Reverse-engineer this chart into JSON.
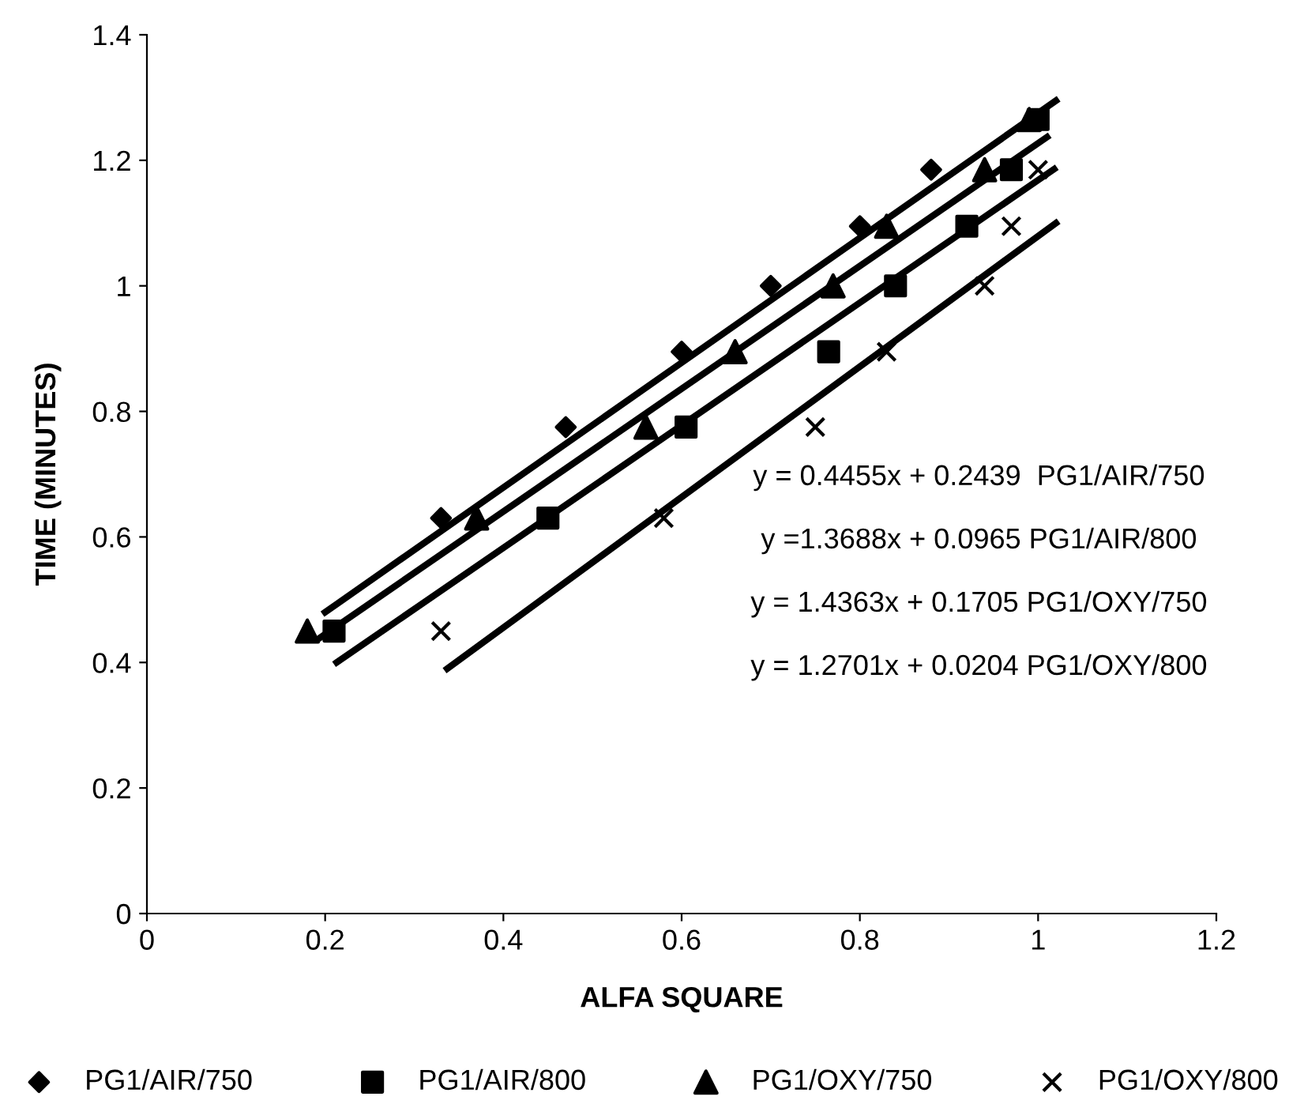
{
  "chart_data": {
    "type": "scatter",
    "xlabel": "ALFA SQUARE",
    "ylabel": "TIME (MINUTES)",
    "xlim": [
      0,
      1.2
    ],
    "xticks": [
      0,
      0.2,
      0.4,
      0.6,
      0.8,
      1,
      1.2
    ],
    "ylim": [
      0,
      1.4
    ],
    "yticks": [
      0,
      0.2,
      0.4,
      0.6,
      0.8,
      1,
      1.2,
      1.4
    ],
    "grid": false,
    "legend": "bottom",
    "annotations": [
      "y = 0.4455x + 0.2439  PG1/AIR/750",
      "y =1.3688x + 0.0965 PG1/AIR/800",
      "y = 1.4363x + 0.1705 PG1/OXY/750",
      "y = 1.2701x + 0.0204 PG1/OXY/800"
    ],
    "series": [
      {
        "name": "PG1/AIR/750",
        "color": "#000000",
        "marker": "diamond",
        "x": [
          0.33,
          0.47,
          0.6,
          0.7,
          0.8,
          0.88
        ],
        "values": [
          0.63,
          0.775,
          0.895,
          1.0,
          1.095,
          1.185
        ]
      },
      {
        "name": "PG1/AIR/800",
        "color": "#000000",
        "marker": "square",
        "x": [
          0.21,
          0.45,
          0.605,
          0.765,
          0.84,
          0.92,
          0.97,
          1.0
        ],
        "values": [
          0.45,
          0.63,
          0.775,
          0.895,
          1.0,
          1.095,
          1.185,
          1.265
        ]
      },
      {
        "name": "PG1/OXY/750",
        "color": "#000000",
        "marker": "triangle",
        "x": [
          0.18,
          0.37,
          0.56,
          0.66,
          0.77,
          0.83,
          0.94,
          0.99
        ],
        "values": [
          0.45,
          0.63,
          0.775,
          0.895,
          1.0,
          1.095,
          1.185,
          1.265
        ]
      },
      {
        "name": "PG1/OXY/800",
        "color": "#000000",
        "marker": "cross",
        "x": [
          0.33,
          0.58,
          0.75,
          0.83,
          0.94,
          0.97,
          1.0
        ],
        "values": [
          0.45,
          0.63,
          0.775,
          0.895,
          1.0,
          1.095,
          1.185
        ]
      },
      {
        "type": "line",
        "color": "#000000",
        "marker": "none",
        "x": [
          0.2,
          1.02
        ],
        "values": [
          0.48,
          1.295
        ]
      },
      {
        "type": "line",
        "color": "#000000",
        "marker": "none",
        "x": [
          0.195,
          1.01
        ],
        "values": [
          0.44,
          1.237
        ]
      },
      {
        "type": "line",
        "color": "#000000",
        "marker": "none",
        "x": [
          0.213,
          1.018
        ],
        "values": [
          0.4,
          1.186
        ]
      },
      {
        "type": "line",
        "color": "#000000",
        "marker": "none",
        "x": [
          0.337,
          1.02
        ],
        "values": [
          0.39,
          1.1
        ]
      }
    ]
  }
}
